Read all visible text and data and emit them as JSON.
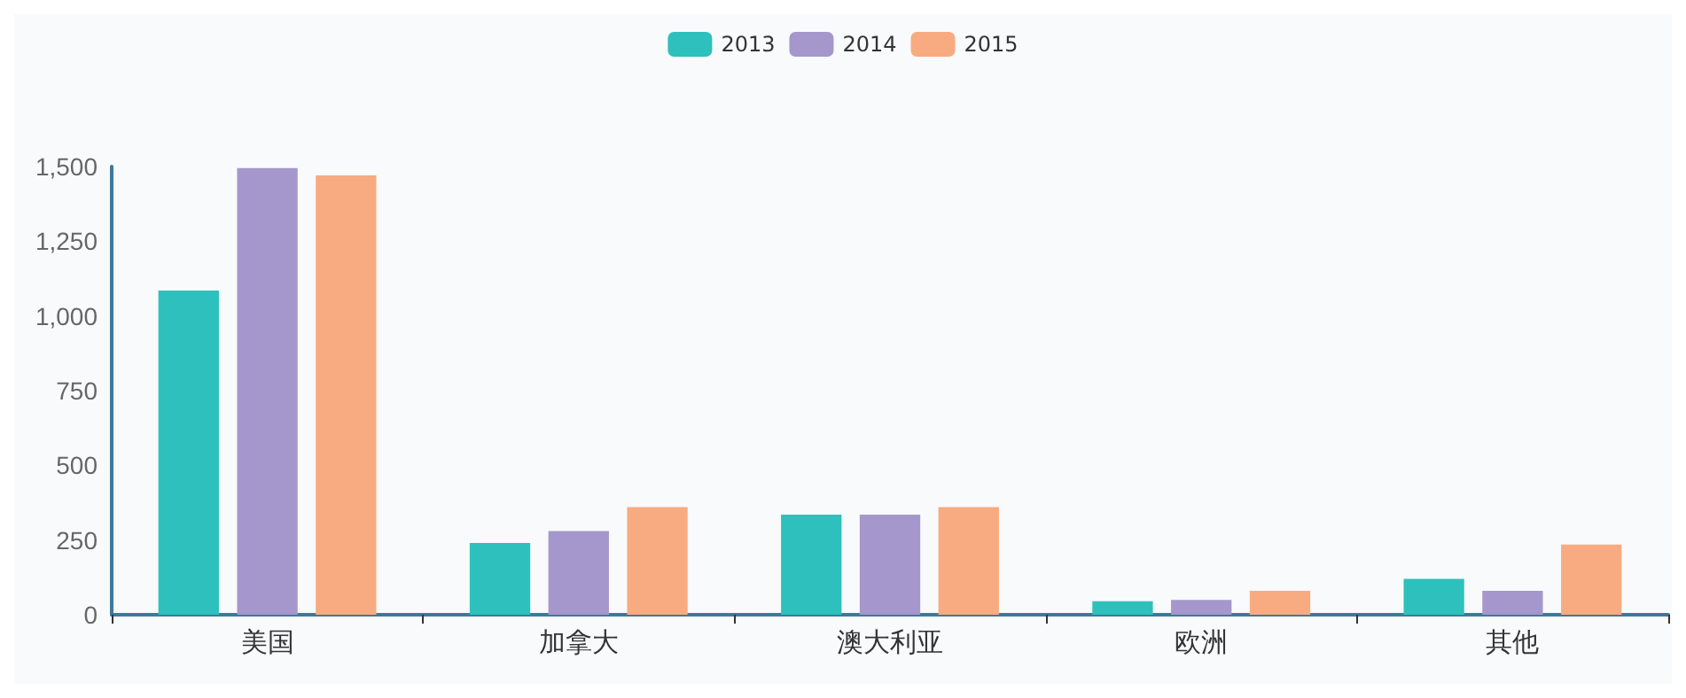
{
  "chart_data": {
    "type": "bar",
    "categories": [
      "美国",
      "加拿大",
      "澳大利亚",
      "欧洲",
      "其他"
    ],
    "series": [
      {
        "name": "2013",
        "color": "#2ec0bc",
        "values": [
          1085,
          240,
          335,
          45,
          120
        ]
      },
      {
        "name": "2014",
        "color": "#a597cb",
        "values": [
          1495,
          280,
          335,
          50,
          80
        ]
      },
      {
        "name": "2015",
        "color": "#f8ab80",
        "values": [
          1470,
          360,
          360,
          80,
          235
        ]
      }
    ],
    "ylim": [
      0,
      1500
    ],
    "yticks": [
      0,
      250,
      500,
      750,
      {
        "value": 1000,
        "label": "1,000"
      },
      {
        "value": 1250,
        "label": "1,250"
      },
      {
        "value": 1500,
        "label": "1,500"
      }
    ],
    "grid": false,
    "legend": "top"
  }
}
